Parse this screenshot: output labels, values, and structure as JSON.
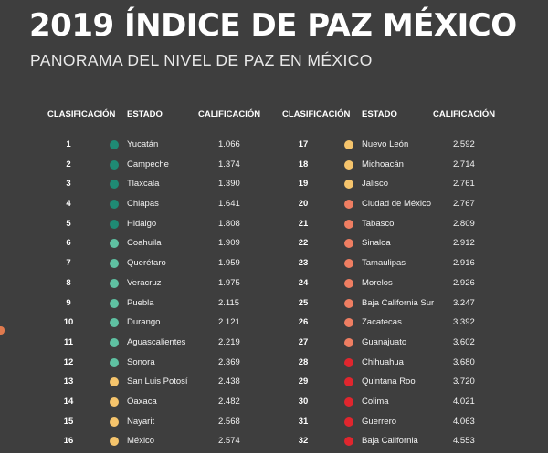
{
  "header": {
    "title": "2019  ÍNDICE DE PAZ MÉXICO",
    "subtitle": "PANORAMA DEL NIVEL DE PAZ EN MÉXICO"
  },
  "columns": {
    "rank": "CLASIFICACIÓN",
    "state": "ESTADO",
    "score": "CALIFICACIÓN"
  },
  "colors": {
    "teal_dark": "#1f8a74",
    "teal_light": "#5fc1a2",
    "yellow": "#f5c46c",
    "orange": "#ef7e62",
    "red": "#e0262e"
  },
  "left_rows": [
    {
      "rank": "1",
      "state": "Yucatán",
      "score": "1.066",
      "color": "#1f8a74"
    },
    {
      "rank": "2",
      "state": "Campeche",
      "score": "1.374",
      "color": "#1f8a74"
    },
    {
      "rank": "3",
      "state": "Tlaxcala",
      "score": "1.390",
      "color": "#1f8a74"
    },
    {
      "rank": "4",
      "state": "Chiapas",
      "score": "1.641",
      "color": "#1f8a74"
    },
    {
      "rank": "5",
      "state": "Hidalgo",
      "score": "1.808",
      "color": "#1f8a74"
    },
    {
      "rank": "6",
      "state": "Coahuila",
      "score": "1.909",
      "color": "#5fc1a2"
    },
    {
      "rank": "7",
      "state": "Querétaro",
      "score": "1.959",
      "color": "#5fc1a2"
    },
    {
      "rank": "8",
      "state": "Veracruz",
      "score": "1.975",
      "color": "#5fc1a2"
    },
    {
      "rank": "9",
      "state": "Puebla",
      "score": "2.115",
      "color": "#5fc1a2"
    },
    {
      "rank": "10",
      "state": "Durango",
      "score": "2.121",
      "color": "#5fc1a2"
    },
    {
      "rank": "11",
      "state": "Aguascalientes",
      "score": "2.219",
      "color": "#5fc1a2"
    },
    {
      "rank": "12",
      "state": "Sonora",
      "score": "2.369",
      "color": "#5fc1a2"
    },
    {
      "rank": "13",
      "state": "San Luis Potosí",
      "score": "2.438",
      "color": "#f5c46c"
    },
    {
      "rank": "14",
      "state": "Oaxaca",
      "score": "2.482",
      "color": "#f5c46c"
    },
    {
      "rank": "15",
      "state": "Nayarit",
      "score": "2.568",
      "color": "#f5c46c"
    },
    {
      "rank": "16",
      "state": "México",
      "score": "2.574",
      "color": "#f5c46c"
    }
  ],
  "right_rows": [
    {
      "rank": "17",
      "state": "Nuevo León",
      "score": "2.592",
      "color": "#f5c46c"
    },
    {
      "rank": "18",
      "state": "Michoacán",
      "score": "2.714",
      "color": "#f5c46c"
    },
    {
      "rank": "19",
      "state": "Jalisco",
      "score": "2.761",
      "color": "#f5c46c"
    },
    {
      "rank": "20",
      "state": "Ciudad de México",
      "score": "2.767",
      "color": "#ef7e62"
    },
    {
      "rank": "21",
      "state": "Tabasco",
      "score": "2.809",
      "color": "#ef7e62"
    },
    {
      "rank": "22",
      "state": "Sinaloa",
      "score": "2.912",
      "color": "#ef7e62"
    },
    {
      "rank": "23",
      "state": "Tamaulipas",
      "score": "2.916",
      "color": "#ef7e62"
    },
    {
      "rank": "24",
      "state": "Morelos",
      "score": "2.926",
      "color": "#ef7e62"
    },
    {
      "rank": "25",
      "state": "Baja California Sur",
      "score": "3.247",
      "color": "#ef7e62"
    },
    {
      "rank": "26",
      "state": "Zacatecas",
      "score": "3.392",
      "color": "#ef7e62"
    },
    {
      "rank": "27",
      "state": "Guanajuato",
      "score": "3.602",
      "color": "#ef7e62"
    },
    {
      "rank": "28",
      "state": "Chihuahua",
      "score": "3.680",
      "color": "#e0262e"
    },
    {
      "rank": "29",
      "state": "Quintana Roo",
      "score": "3.720",
      "color": "#e0262e"
    },
    {
      "rank": "30",
      "state": "Colima",
      "score": "4.021",
      "color": "#e0262e"
    },
    {
      "rank": "31",
      "state": "Guerrero",
      "score": "4.063",
      "color": "#e0262e"
    },
    {
      "rank": "32",
      "state": "Baja California",
      "score": "4.553",
      "color": "#e0262e"
    }
  ]
}
